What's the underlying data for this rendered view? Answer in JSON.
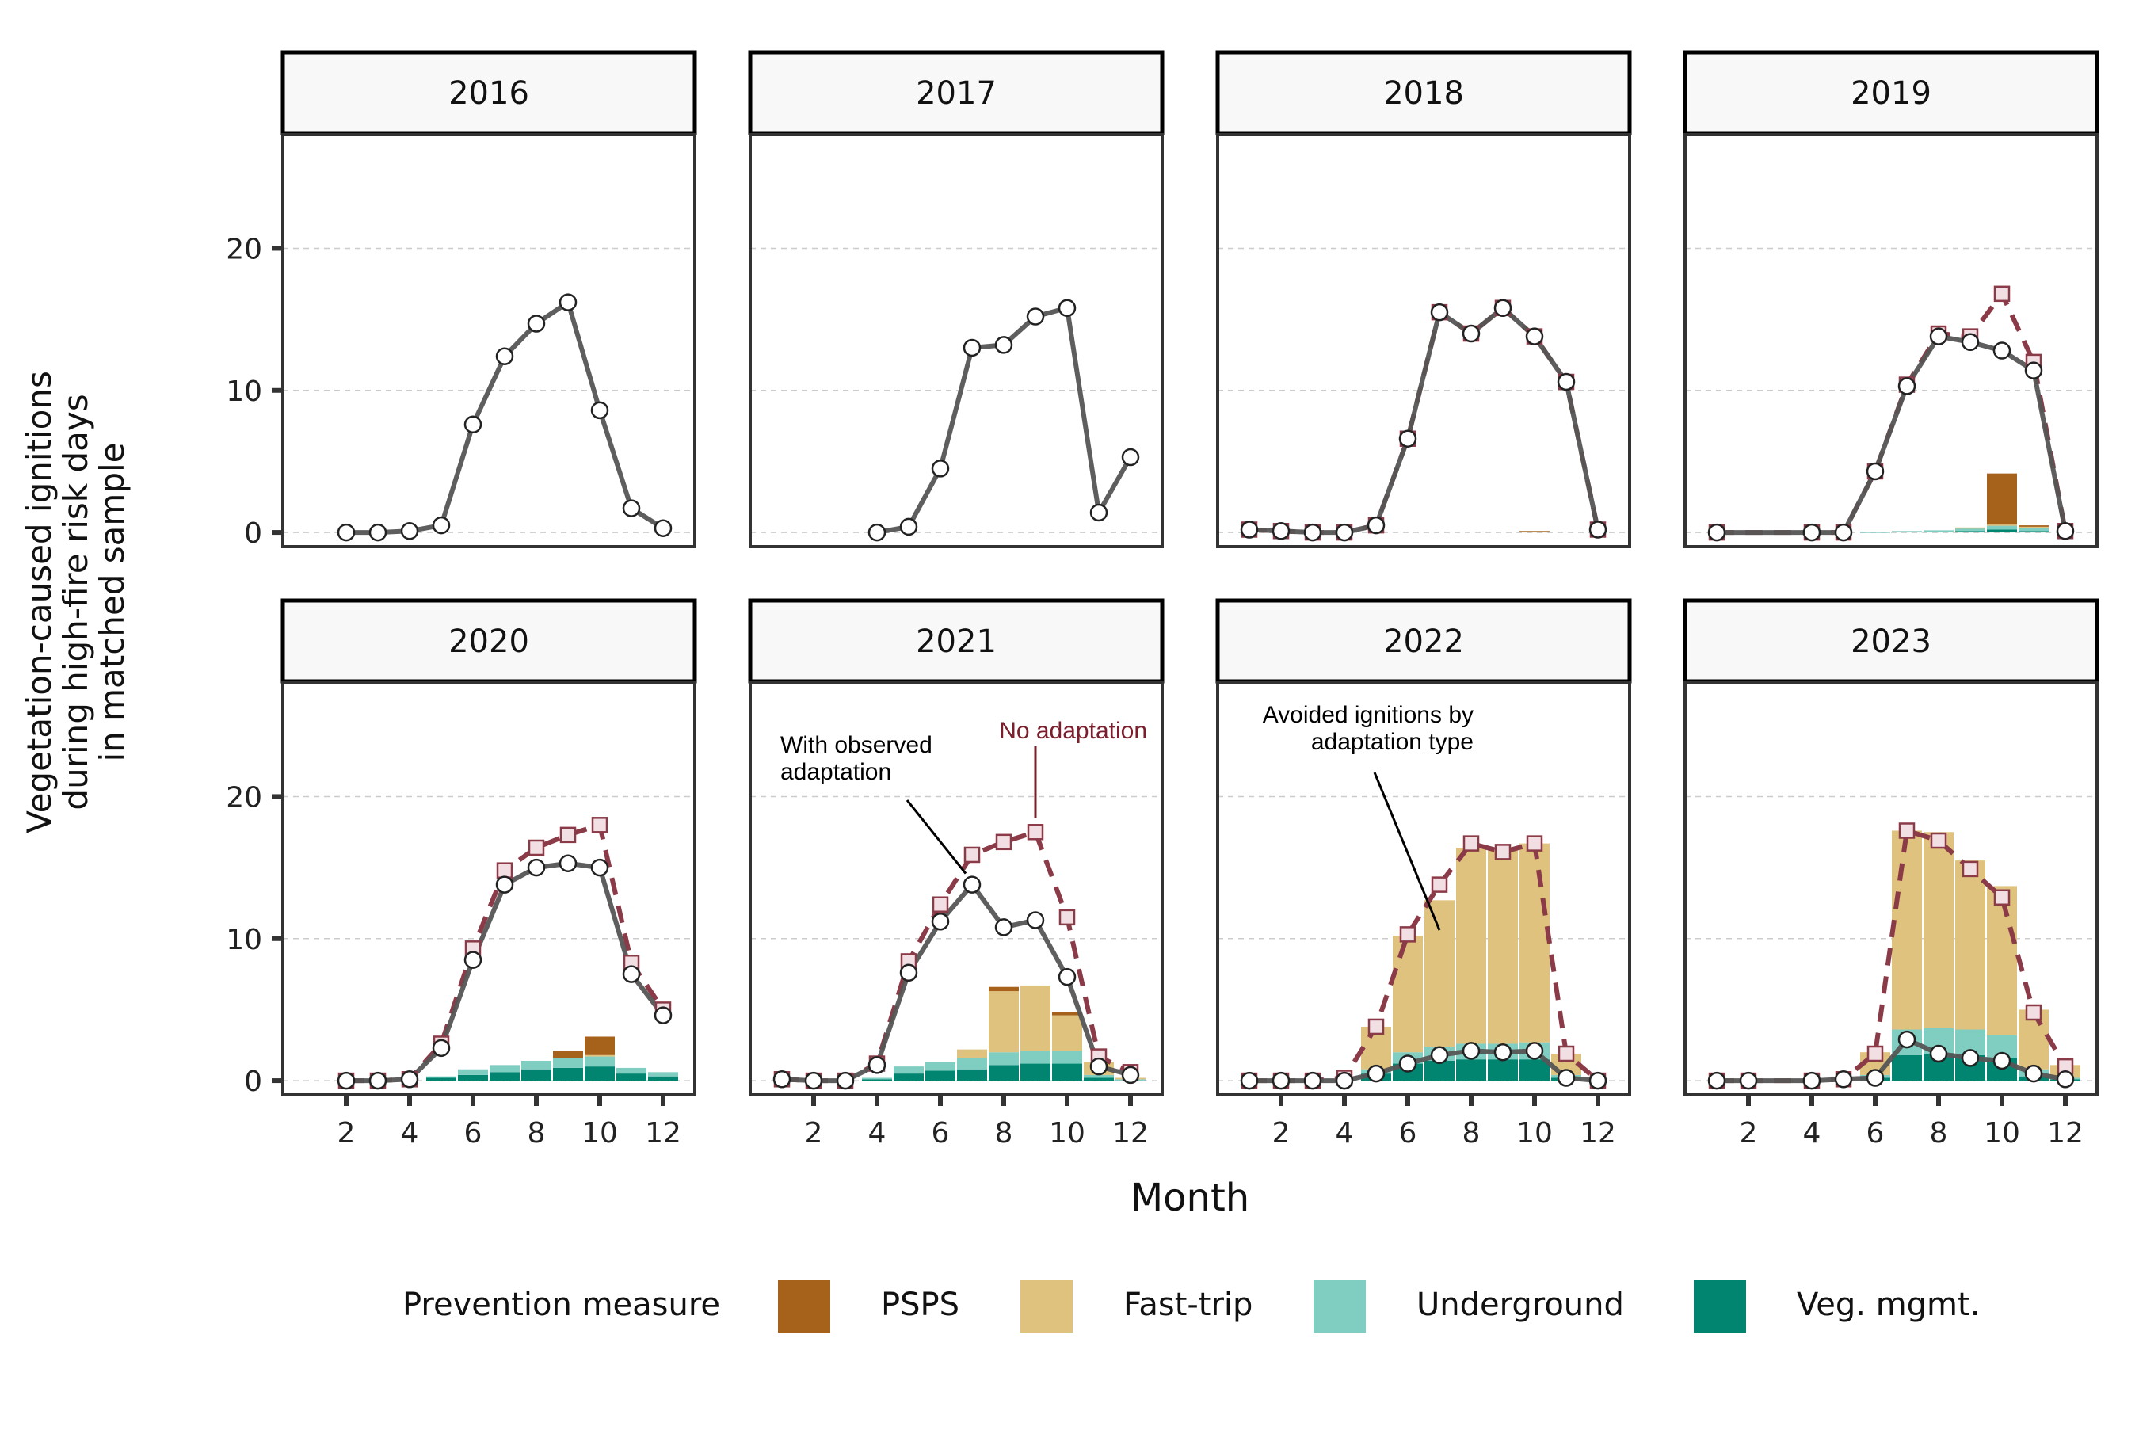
{
  "chart_data": {
    "type": "line",
    "description_free": true,
    "ylabel": [
      "Vegetation-caused ignitions",
      "during high-fire risk days",
      "in matched sample"
    ],
    "xlabel": "Month",
    "ylim": [
      -1,
      28
    ],
    "y_ticks": [
      0,
      10,
      20
    ],
    "x_ticks": [
      2,
      4,
      6,
      8,
      10,
      12
    ],
    "grid": "horizontal dashed",
    "legend": {
      "title": "Prevention measure",
      "placement": "bottom",
      "entries": [
        {
          "name": "PSPS",
          "color": "#A6611A"
        },
        {
          "name": "Fast-trip",
          "color": "#DFC27D"
        },
        {
          "name": "Underground",
          "color": "#80CDC1"
        },
        {
          "name": "Veg. mgmt.",
          "color": "#018571"
        }
      ]
    },
    "colors": {
      "observed_line": "#555555",
      "no_adaptation_line": "#8B3A48",
      "square_fill": "#F2DFE3",
      "panel_header_bg": "#F8F8F8",
      "grid": "#CCCCCC"
    },
    "panels": [
      {
        "year": "2016",
        "observed": [
          [
            2,
            0
          ],
          [
            3,
            0
          ],
          [
            4,
            0.1
          ],
          [
            5,
            0.5
          ],
          [
            6,
            7.6
          ],
          [
            7,
            12.4
          ],
          [
            8,
            14.7
          ],
          [
            9,
            16.2
          ],
          [
            10,
            8.6
          ],
          [
            11,
            1.7
          ],
          [
            12,
            0.3
          ]
        ],
        "no_adaptation": [],
        "bars": []
      },
      {
        "year": "2017",
        "observed": [
          [
            4,
            0
          ],
          [
            5,
            0.4
          ],
          [
            6,
            4.5
          ],
          [
            7,
            13.0
          ],
          [
            8,
            13.2
          ],
          [
            9,
            15.2
          ],
          [
            10,
            15.8
          ],
          [
            11,
            1.4
          ],
          [
            12,
            5.3
          ]
        ],
        "no_adaptation": [],
        "bars": []
      },
      {
        "year": "2018",
        "observed": [
          [
            1,
            0.2
          ],
          [
            2,
            0.1
          ],
          [
            3,
            0
          ],
          [
            4,
            0
          ],
          [
            5,
            0.5
          ],
          [
            6,
            6.6
          ],
          [
            7,
            15.5
          ],
          [
            8,
            14.0
          ],
          [
            9,
            15.8
          ],
          [
            10,
            13.8
          ],
          [
            11,
            10.6
          ],
          [
            12,
            0.2
          ]
        ],
        "no_adaptation": [
          [
            1,
            0.2
          ],
          [
            2,
            0.1
          ],
          [
            3,
            0
          ],
          [
            4,
            0
          ],
          [
            5,
            0.5
          ],
          [
            6,
            6.6
          ],
          [
            7,
            15.5
          ],
          [
            8,
            14.0
          ],
          [
            9,
            15.8
          ],
          [
            10,
            13.8
          ],
          [
            11,
            10.6
          ],
          [
            12,
            0.2
          ]
        ],
        "bars": [
          {
            "month": 10,
            "veg": 0,
            "under": 0,
            "fast": 0,
            "psps": 0.1
          }
        ]
      },
      {
        "year": "2019",
        "observed": [
          [
            1,
            0
          ],
          [
            4,
            0
          ],
          [
            5,
            0
          ],
          [
            6,
            4.3
          ],
          [
            7,
            10.3
          ],
          [
            8,
            13.8
          ],
          [
            9,
            13.4
          ],
          [
            10,
            12.8
          ],
          [
            11,
            11.4
          ],
          [
            12,
            0.1
          ]
        ],
        "no_adaptation": [
          [
            1,
            0
          ],
          [
            4,
            0
          ],
          [
            5,
            0
          ],
          [
            6,
            4.3
          ],
          [
            7,
            10.4
          ],
          [
            8,
            14.0
          ],
          [
            9,
            13.8
          ],
          [
            10,
            16.8
          ],
          [
            11,
            12.0
          ],
          [
            12,
            0.1
          ]
        ],
        "bars": [
          {
            "month": 6,
            "veg": 0,
            "under": 0.05,
            "fast": 0,
            "psps": 0
          },
          {
            "month": 7,
            "veg": 0,
            "under": 0.1,
            "fast": 0,
            "psps": 0
          },
          {
            "month": 8,
            "veg": 0,
            "under": 0.15,
            "fast": 0,
            "psps": 0
          },
          {
            "month": 9,
            "veg": 0.1,
            "under": 0.2,
            "fast": 0.05,
            "psps": 0
          },
          {
            "month": 10,
            "veg": 0.2,
            "under": 0.3,
            "fast": 0.05,
            "psps": 3.6
          },
          {
            "month": 11,
            "veg": 0.1,
            "under": 0.2,
            "fast": 0.1,
            "psps": 0.1
          }
        ]
      },
      {
        "year": "2020",
        "observed": [
          [
            2,
            0
          ],
          [
            3,
            0
          ],
          [
            4,
            0.1
          ],
          [
            5,
            2.3
          ],
          [
            6,
            8.5
          ],
          [
            7,
            13.8
          ],
          [
            8,
            15.0
          ],
          [
            9,
            15.3
          ],
          [
            10,
            15.0
          ],
          [
            11,
            7.5
          ],
          [
            12,
            4.6
          ]
        ],
        "no_adaptation": [
          [
            2,
            0
          ],
          [
            3,
            0
          ],
          [
            4,
            0.1
          ],
          [
            5,
            2.6
          ],
          [
            6,
            9.3
          ],
          [
            7,
            14.8
          ],
          [
            8,
            16.4
          ],
          [
            9,
            17.3
          ],
          [
            10,
            18.0
          ],
          [
            11,
            8.3
          ],
          [
            12,
            5.0
          ]
        ],
        "bars": [
          {
            "month": 5,
            "veg": 0.2,
            "under": 0.1,
            "fast": 0,
            "psps": 0
          },
          {
            "month": 6,
            "veg": 0.4,
            "under": 0.4,
            "fast": 0,
            "psps": 0
          },
          {
            "month": 7,
            "veg": 0.6,
            "under": 0.5,
            "fast": 0,
            "psps": 0
          },
          {
            "month": 8,
            "veg": 0.8,
            "under": 0.6,
            "fast": 0,
            "psps": 0
          },
          {
            "month": 9,
            "veg": 0.9,
            "under": 0.7,
            "fast": 0,
            "psps": 0.5
          },
          {
            "month": 10,
            "veg": 1.0,
            "under": 0.7,
            "fast": 0.1,
            "psps": 1.3
          },
          {
            "month": 11,
            "veg": 0.5,
            "under": 0.4,
            "fast": 0,
            "psps": 0
          },
          {
            "month": 12,
            "veg": 0.3,
            "under": 0.3,
            "fast": 0,
            "psps": 0
          }
        ]
      },
      {
        "year": "2021",
        "observed": [
          [
            1,
            0.1
          ],
          [
            2,
            0
          ],
          [
            3,
            0
          ],
          [
            4,
            1.1
          ],
          [
            5,
            7.6
          ],
          [
            6,
            11.2
          ],
          [
            7,
            13.8
          ],
          [
            8,
            10.8
          ],
          [
            9,
            11.3
          ],
          [
            10,
            7.3
          ],
          [
            11,
            1.0
          ],
          [
            12,
            0.4
          ]
        ],
        "no_adaptation": [
          [
            1,
            0.1
          ],
          [
            2,
            0
          ],
          [
            3,
            0
          ],
          [
            4,
            1.2
          ],
          [
            5,
            8.4
          ],
          [
            6,
            12.4
          ],
          [
            7,
            15.9
          ],
          [
            8,
            16.8
          ],
          [
            9,
            17.5
          ],
          [
            10,
            11.5
          ],
          [
            11,
            1.7
          ],
          [
            12,
            0.6
          ]
        ],
        "bars": [
          {
            "month": 4,
            "veg": 0.1,
            "under": 0.1,
            "fast": 0,
            "psps": 0
          },
          {
            "month": 5,
            "veg": 0.5,
            "under": 0.5,
            "fast": 0,
            "psps": 0
          },
          {
            "month": 6,
            "veg": 0.7,
            "under": 0.6,
            "fast": 0,
            "psps": 0
          },
          {
            "month": 7,
            "veg": 0.8,
            "under": 0.8,
            "fast": 0.6,
            "psps": 0
          },
          {
            "month": 8,
            "veg": 1.1,
            "under": 0.9,
            "fast": 4.3,
            "psps": 0.3
          },
          {
            "month": 9,
            "veg": 1.2,
            "under": 0.9,
            "fast": 4.6,
            "psps": 0
          },
          {
            "month": 10,
            "veg": 1.2,
            "under": 0.9,
            "fast": 2.5,
            "psps": 0.2
          },
          {
            "month": 11,
            "veg": 0.2,
            "under": 0.2,
            "fast": 0.9,
            "psps": 0
          },
          {
            "month": 12,
            "veg": 0,
            "under": 0.1,
            "fast": 0.1,
            "psps": 0
          }
        ]
      },
      {
        "year": "2022",
        "observed": [
          [
            1,
            0
          ],
          [
            2,
            0
          ],
          [
            3,
            0
          ],
          [
            4,
            0
          ],
          [
            5,
            0.5
          ],
          [
            6,
            1.2
          ],
          [
            7,
            1.8
          ],
          [
            8,
            2.1
          ],
          [
            9,
            2.0
          ],
          [
            10,
            2.1
          ],
          [
            11,
            0.2
          ],
          [
            12,
            0
          ]
        ],
        "no_adaptation": [
          [
            1,
            0
          ],
          [
            2,
            0
          ],
          [
            3,
            0
          ],
          [
            4,
            0.2
          ],
          [
            5,
            3.8
          ],
          [
            6,
            10.3
          ],
          [
            7,
            13.8
          ],
          [
            8,
            16.7
          ],
          [
            9,
            16.1
          ],
          [
            10,
            16.7
          ],
          [
            11,
            1.9
          ],
          [
            12,
            0
          ]
        ],
        "bars": [
          {
            "month": 5,
            "veg": 0.5,
            "under": 0.3,
            "fast": 3.0,
            "psps": 0
          },
          {
            "month": 6,
            "veg": 1.2,
            "under": 0.8,
            "fast": 8.2,
            "psps": 0
          },
          {
            "month": 7,
            "veg": 1.4,
            "under": 1.0,
            "fast": 10.3,
            "psps": 0
          },
          {
            "month": 8,
            "veg": 1.5,
            "under": 1.1,
            "fast": 13.8,
            "psps": 0
          },
          {
            "month": 9,
            "veg": 1.5,
            "under": 1.1,
            "fast": 13.6,
            "psps": 0
          },
          {
            "month": 10,
            "veg": 1.5,
            "under": 1.2,
            "fast": 14.0,
            "psps": 0
          },
          {
            "month": 11,
            "veg": 0.2,
            "under": 0.2,
            "fast": 1.5,
            "psps": 0
          }
        ]
      },
      {
        "year": "2023",
        "observed": [
          [
            1,
            0
          ],
          [
            2,
            0
          ],
          [
            4,
            0
          ],
          [
            5,
            0.1
          ],
          [
            6,
            0.2
          ],
          [
            7,
            2.9
          ],
          [
            8,
            1.9
          ],
          [
            9,
            1.6
          ],
          [
            10,
            1.4
          ],
          [
            11,
            0.5
          ],
          [
            12,
            0.1
          ]
        ],
        "no_adaptation": [
          [
            1,
            0
          ],
          [
            2,
            0
          ],
          [
            4,
            0
          ],
          [
            5,
            0.1
          ],
          [
            6,
            1.9
          ],
          [
            7,
            17.6
          ],
          [
            8,
            16.9
          ],
          [
            9,
            14.9
          ],
          [
            10,
            12.9
          ],
          [
            11,
            4.8
          ],
          [
            12,
            1.0
          ]
        ],
        "bars": [
          {
            "month": 6,
            "veg": 0.2,
            "under": 0.2,
            "fast": 1.6,
            "psps": 0
          },
          {
            "month": 7,
            "veg": 1.8,
            "under": 1.8,
            "fast": 14.0,
            "psps": 0
          },
          {
            "month": 8,
            "veg": 1.9,
            "under": 1.8,
            "fast": 13.8,
            "psps": 0
          },
          {
            "month": 9,
            "veg": 1.8,
            "under": 1.8,
            "fast": 11.9,
            "psps": 0
          },
          {
            "month": 10,
            "veg": 1.6,
            "under": 1.6,
            "fast": 10.5,
            "psps": 0
          },
          {
            "month": 11,
            "veg": 0.3,
            "under": 0.5,
            "fast": 4.2,
            "psps": 0
          },
          {
            "month": 12,
            "veg": 0.1,
            "under": 0.1,
            "fast": 0.9,
            "psps": 0
          }
        ]
      }
    ],
    "annotations": [
      {
        "panel": "2021",
        "lines": [
          "With observed",
          "adaptation"
        ],
        "series": "observed"
      },
      {
        "panel": "2021",
        "lines": [
          "No adaptation"
        ],
        "series": "no_adaptation"
      },
      {
        "panel": "2022",
        "lines": [
          "Avoided ignitions by",
          "adaptation type"
        ],
        "series": "bars"
      }
    ]
  }
}
